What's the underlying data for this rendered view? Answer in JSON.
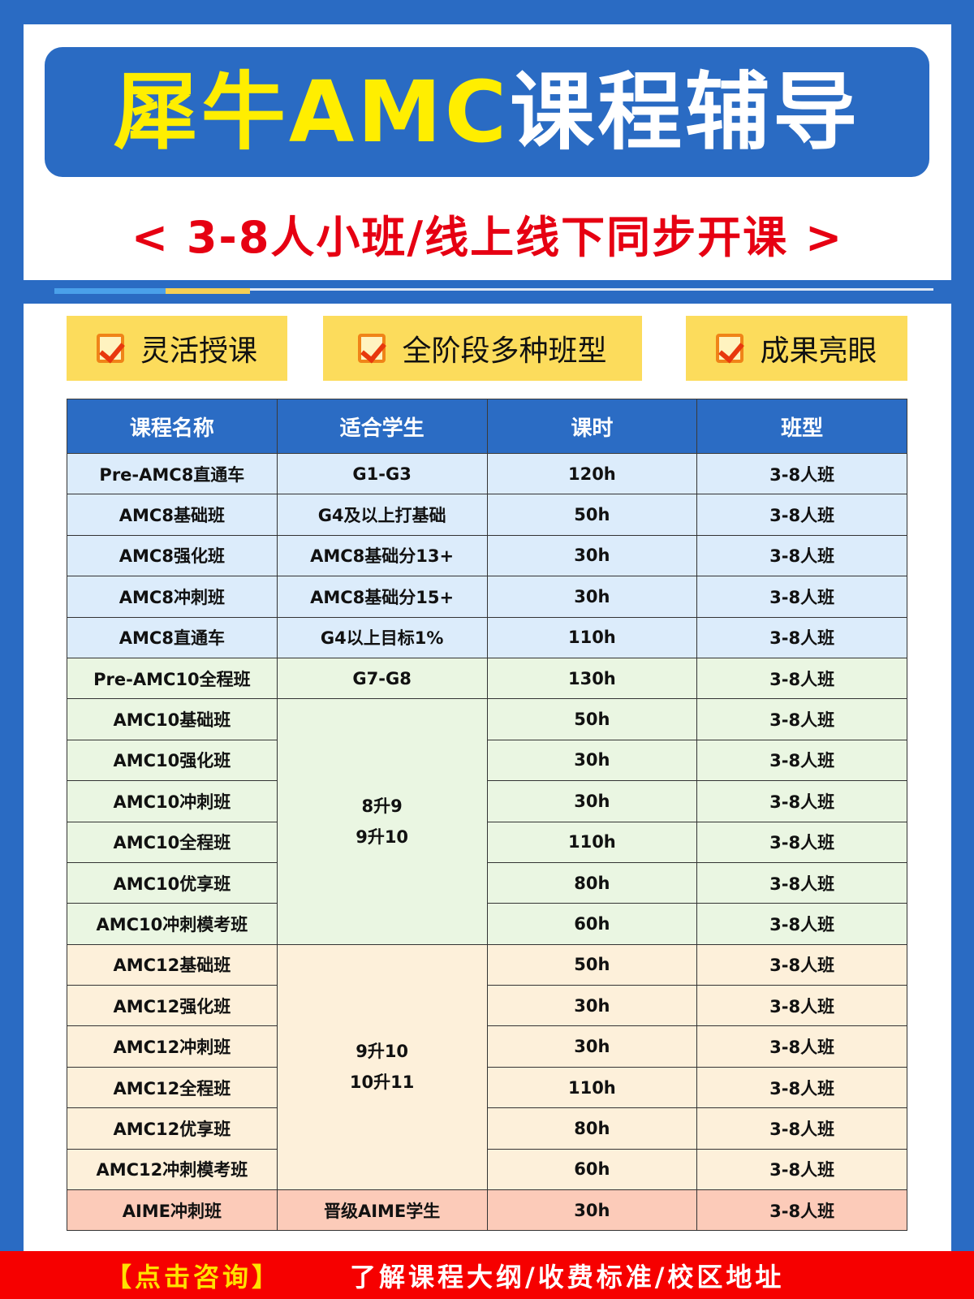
{
  "title": {
    "part_yellow": "犀牛AMC",
    "part_white": "课程辅导"
  },
  "subtitle": "< 3-8人小班/线上线下同步开课 >",
  "features": [
    "灵活授课",
    "全阶段多种班型",
    "成果亮眼"
  ],
  "colors": {
    "background": "#2a6bc3",
    "title": "#ffee00",
    "subtitle": "#e60012",
    "header": "#2b6cc4",
    "amc8": "#dcecfb",
    "amc10": "#eaf6e2",
    "amc12": "#fdf0da",
    "aime": "#fccbb9",
    "footer": "#f60000"
  },
  "table": {
    "headers": [
      "课程名称",
      "适合学生",
      "课时",
      "班型"
    ],
    "rows": [
      {
        "name": "Pre-AMC8直通车",
        "students": "G1-G3",
        "hours": "120h",
        "type": "3-8人班"
      },
      {
        "name": "AMC8基础班",
        "students": "G4及以上打基础",
        "hours": "50h",
        "type": "3-8人班"
      },
      {
        "name": "AMC8强化班",
        "students": "AMC8基础分13+",
        "hours": "30h",
        "type": "3-8人班"
      },
      {
        "name": "AMC8冲刺班",
        "students": "AMC8基础分15+",
        "hours": "30h",
        "type": "3-8人班"
      },
      {
        "name": "AMC8直通车",
        "students": "G4以上目标1%",
        "hours": "110h",
        "type": "3-8人班"
      },
      {
        "name": "Pre-AMC10全程班",
        "students": "G7-G8",
        "hours": "130h",
        "type": "3-8人班"
      },
      {
        "name": "AMC10基础班",
        "students": "8升9\n9升10",
        "hours": "50h",
        "type": "3-8人班"
      },
      {
        "name": "AMC10强化班",
        "hours": "30h",
        "type": "3-8人班"
      },
      {
        "name": "AMC10冲刺班",
        "hours": "30h",
        "type": "3-8人班"
      },
      {
        "name": "AMC10全程班",
        "hours": "110h",
        "type": "3-8人班"
      },
      {
        "name": "AMC10优享班",
        "hours": "80h",
        "type": "3-8人班"
      },
      {
        "name": "AMC10冲刺模考班",
        "hours": "60h",
        "type": "3-8人班"
      },
      {
        "name": "AMC12基础班",
        "students": "9升10\n10升11",
        "hours": "50h",
        "type": "3-8人班"
      },
      {
        "name": "AMC12强化班",
        "hours": "30h",
        "type": "3-8人班"
      },
      {
        "name": "AMC12冲刺班",
        "hours": "30h",
        "type": "3-8人班"
      },
      {
        "name": "AMC12全程班",
        "hours": "110h",
        "type": "3-8人班"
      },
      {
        "name": "AMC12优享班",
        "hours": "80h",
        "type": "3-8人班"
      },
      {
        "name": "AMC12冲刺模考班",
        "hours": "60h",
        "type": "3-8人班"
      },
      {
        "name": "AIME冲刺班",
        "students": "晋级AIME学生",
        "hours": "30h",
        "type": "3-8人班"
      }
    ]
  },
  "footer": {
    "cta": "【点击咨询】",
    "info": "了解课程大纲/收费标准/校区地址"
  }
}
